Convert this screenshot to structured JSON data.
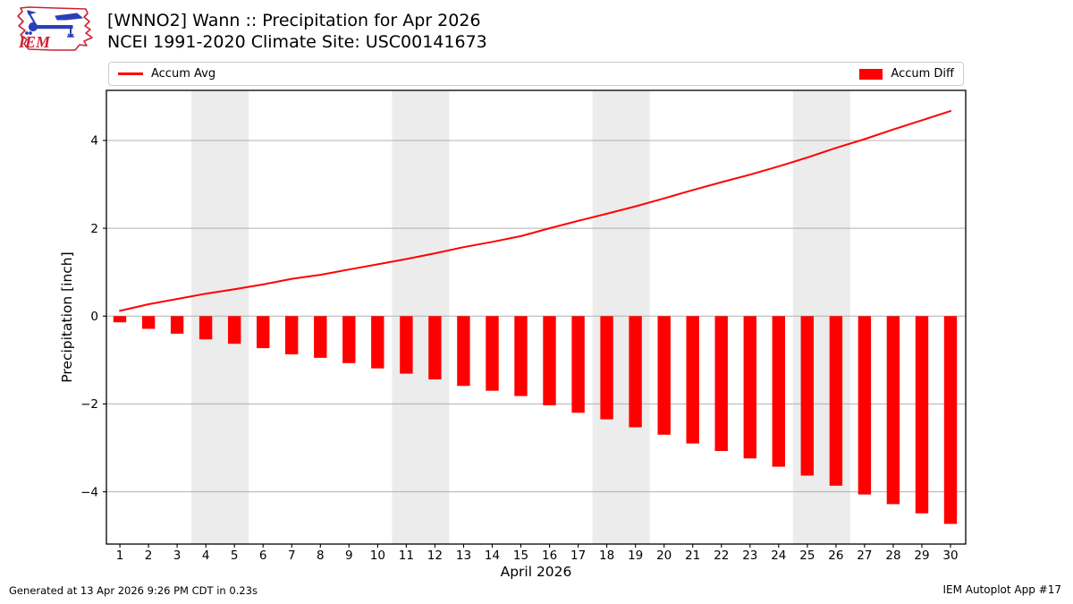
{
  "logo": {
    "text": "IEM"
  },
  "header": {
    "title": "[WNNO2] Wann :: Precipitation for Apr 2026",
    "subtitle": "NCEI 1991-2020 Climate Site: USC00141673"
  },
  "footer": {
    "generated": "Generated at 13 Apr 2026 9:26 PM CDT in 0.23s",
    "app": "IEM Autoplot App #17"
  },
  "colors": {
    "accent_red": "#ff0000",
    "weekend_band": "#ececec",
    "gridline": "#b0b0b0",
    "axis_border": "#000000",
    "legend_border": "#cccccc",
    "logo_red": "#cc2233",
    "logo_blue": "#2a3fb8"
  },
  "chart_data": {
    "type": "bar",
    "title": "[WNNO2] Wann :: Precipitation for Apr 2026",
    "subtitle": "NCEI 1991-2020 Climate Site: USC00141673",
    "xlabel": "April 2026",
    "ylabel": "Precipitation [inch]",
    "x": [
      1,
      2,
      3,
      4,
      5,
      6,
      7,
      8,
      9,
      10,
      11,
      12,
      13,
      14,
      15,
      16,
      17,
      18,
      19,
      20,
      21,
      22,
      23,
      24,
      25,
      26,
      27,
      28,
      29,
      30
    ],
    "xlim": [
      0.53,
      30.53
    ],
    "ylim": [
      -5.19,
      5.14
    ],
    "yticks": [
      -4,
      -2,
      0,
      2,
      4
    ],
    "grid": "horizontal",
    "legend_position": "top",
    "weekend_bands": [
      [
        3.5,
        5.5
      ],
      [
        10.5,
        12.5
      ],
      [
        17.5,
        19.5
      ],
      [
        24.5,
        26.5
      ]
    ],
    "series": [
      {
        "name": "Accum Avg",
        "type": "line",
        "color": "#ff0000",
        "values": [
          0.12,
          0.27,
          0.39,
          0.51,
          0.61,
          0.72,
          0.85,
          0.94,
          1.06,
          1.18,
          1.3,
          1.43,
          1.57,
          1.69,
          1.82,
          2.0,
          2.17,
          2.33,
          2.5,
          2.68,
          2.87,
          3.05,
          3.22,
          3.41,
          3.61,
          3.83,
          4.03,
          4.25,
          4.46,
          4.67
        ]
      },
      {
        "name": "Accum Diff",
        "type": "bar",
        "color": "#ff0000",
        "bar_width_days": 0.45,
        "values": [
          -0.14,
          -0.29,
          -0.4,
          -0.53,
          -0.63,
          -0.73,
          -0.87,
          -0.95,
          -1.07,
          -1.19,
          -1.31,
          -1.44,
          -1.59,
          -1.7,
          -1.82,
          -2.03,
          -2.2,
          -2.35,
          -2.53,
          -2.7,
          -2.9,
          -3.07,
          -3.24,
          -3.43,
          -3.63,
          -3.86,
          -4.06,
          -4.28,
          -4.49,
          -4.73
        ]
      }
    ]
  }
}
